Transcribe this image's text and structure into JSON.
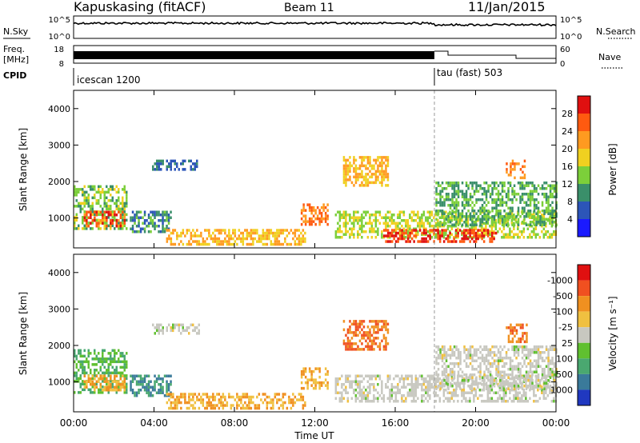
{
  "header": {
    "station": "Kapuskasing (fitACF)",
    "beam": "Beam 11",
    "date": "11/Jan/2015"
  },
  "panels": {
    "nsky": {
      "left_label": "N.Sky",
      "left_ticks": [
        "10^5",
        "10^0"
      ],
      "right_ticks": [
        "10^5",
        "10^0"
      ],
      "right_label": "N.Search"
    },
    "freq": {
      "left_label_top": "Freq.",
      "left_label_bot": "[MHz]",
      "left_ticks": [
        "18",
        "8"
      ],
      "right_ticks": [
        "60",
        "0"
      ],
      "right_label": "Nave"
    },
    "cpid": {
      "label": "CPID",
      "segments": [
        {
          "name": "icescan 1200",
          "start_hour": 0
        },
        {
          "name": "tau (fast) 503",
          "start_hour": 18
        }
      ]
    }
  },
  "axes": {
    "xlabel": "Time UT",
    "x_ticks": [
      "00:00",
      "04:00",
      "08:00",
      "12:00",
      "16:00",
      "20:00",
      "00:00"
    ],
    "x_range_hours": [
      0,
      24
    ],
    "ylabel": "Slant Range [km]",
    "y_ticks": [
      "1000",
      "2000",
      "3000",
      "4000"
    ],
    "y_range_km": [
      180,
      4500
    ]
  },
  "colorbars": {
    "power": {
      "label": "Power [dB]",
      "ticks": [
        "4",
        "8",
        "12",
        "16",
        "20",
        "24",
        "28"
      ],
      "colors": [
        "#1a1aff",
        "#2c55b8",
        "#3a8f6a",
        "#7ccf3a",
        "#f0d020",
        "#ff9a20",
        "#ff5a10",
        "#e01010"
      ]
    },
    "velocity": {
      "label": "Velocity [m s⁻¹]",
      "ticks": [
        "1000",
        "500",
        "100",
        "25",
        "-25",
        "-100",
        "-500",
        "-1000"
      ],
      "colors": [
        "#2038c0",
        "#3a7a9a",
        "#4aa870",
        "#60c030",
        "#c8c8c0",
        "#f0c040",
        "#f09020",
        "#f05020",
        "#e01010"
      ]
    }
  },
  "chart_data": [
    {
      "type": "heatmap",
      "name": "power",
      "xlabel": "Time UT",
      "ylabel": "Slant Range [km]",
      "xlim": [
        0,
        24
      ],
      "ylim": [
        180,
        4500
      ],
      "colorbar": "Power [dB]",
      "regions": [
        {
          "t0": 0.0,
          "t1": 2.6,
          "r0": 700,
          "r1": 1900,
          "db": 14
        },
        {
          "t0": 0.5,
          "t1": 2.5,
          "r0": 800,
          "r1": 1200,
          "db": 26
        },
        {
          "t0": 2.8,
          "t1": 4.8,
          "r0": 650,
          "r1": 1200,
          "db": 10
        },
        {
          "t0": 3.9,
          "t1": 6.2,
          "r0": 2300,
          "r1": 2600,
          "db": 8
        },
        {
          "t0": 4.6,
          "t1": 11.5,
          "r0": 250,
          "r1": 700,
          "db": 20
        },
        {
          "t0": 11.3,
          "t1": 12.6,
          "r0": 800,
          "r1": 1400,
          "db": 24
        },
        {
          "t0": 13.4,
          "t1": 15.6,
          "r0": 1900,
          "r1": 2700,
          "db": 20
        },
        {
          "t0": 13.0,
          "t1": 24.0,
          "r0": 450,
          "r1": 1200,
          "db": 16
        },
        {
          "t0": 15.4,
          "t1": 21.0,
          "r0": 350,
          "r1": 700,
          "db": 28
        },
        {
          "t0": 18.0,
          "t1": 24.0,
          "r0": 800,
          "r1": 2000,
          "db": 12
        },
        {
          "t0": 21.5,
          "t1": 22.5,
          "r0": 2100,
          "r1": 2600,
          "db": 24
        }
      ]
    },
    {
      "type": "heatmap",
      "name": "velocity",
      "xlabel": "Time UT",
      "ylabel": "Slant Range [km]",
      "xlim": [
        0,
        24
      ],
      "ylim": [
        180,
        4500
      ],
      "colorbar": "Velocity [m s⁻¹]",
      "regions": [
        {
          "t0": 0.0,
          "t1": 2.6,
          "r0": 700,
          "r1": 1900,
          "v": 100
        },
        {
          "t0": 0.5,
          "t1": 2.5,
          "r0": 800,
          "r1": 1200,
          "v": -100
        },
        {
          "t0": 2.8,
          "t1": 4.8,
          "r0": 650,
          "r1": 1200,
          "v": 500
        },
        {
          "t0": 3.9,
          "t1": 6.2,
          "r0": 2300,
          "r1": 2600,
          "v": 0
        },
        {
          "t0": 4.6,
          "t1": 11.5,
          "r0": 250,
          "r1": 700,
          "v": -100
        },
        {
          "t0": 11.3,
          "t1": 12.6,
          "r0": 800,
          "r1": 1400,
          "v": -100
        },
        {
          "t0": 13.4,
          "t1": 15.6,
          "r0": 1900,
          "r1": 2700,
          "v": -500
        },
        {
          "t0": 13.0,
          "t1": 24.0,
          "r0": 450,
          "r1": 1200,
          "v": 0
        },
        {
          "t0": 18.0,
          "t1": 24.0,
          "r0": 800,
          "r1": 2000,
          "v": 0
        },
        {
          "t0": 21.5,
          "t1": 22.5,
          "r0": 2100,
          "r1": 2600,
          "v": -500
        }
      ]
    }
  ]
}
